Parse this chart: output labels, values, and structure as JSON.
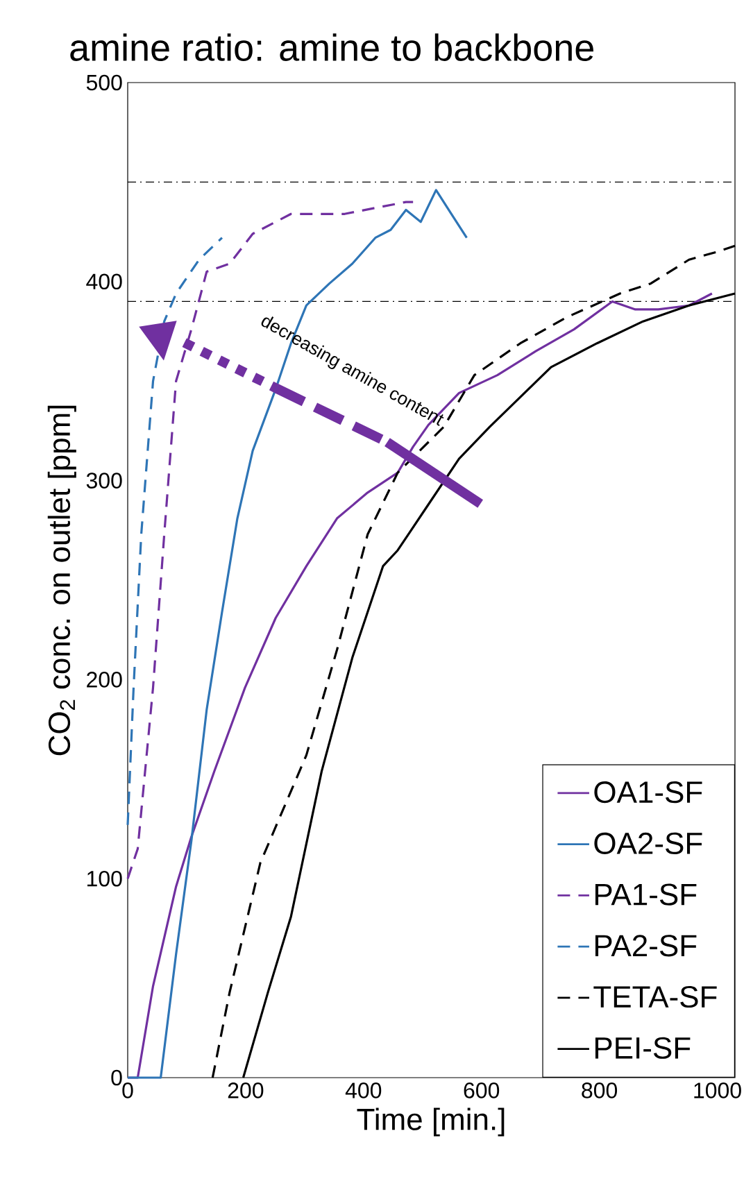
{
  "chart_data": {
    "type": "line",
    "title": "amine ratio: amine to backbone",
    "xlabel": "Time [min.]",
    "ylabel": "CO$_{2}$ conc. on outlet [ppm]",
    "xlim": [
      0,
      1030
    ],
    "ylim": [
      0,
      500
    ],
    "xticks": [
      0,
      200,
      400,
      600,
      800,
      1000
    ],
    "yticks": [
      0,
      100,
      200,
      300,
      400,
      500
    ],
    "grid": false,
    "legend": "bottom right",
    "annotations": [
      "decreasing amine content"
    ],
    "ref_lines": [
      {
        "axis": "y",
        "value": 450,
        "color": "#000000",
        "line_style": "dashdot"
      },
      {
        "axis": "y",
        "value": 390,
        "color": "#000000",
        "line_style": "dashdot"
      }
    ],
    "series": [
      {
        "name": "OA1-SF",
        "color": "#7030a0",
        "line_style": "solid",
        "x": [
          0,
          17,
          43,
          82,
          108,
          147,
          199,
          251,
          303,
          355,
          407,
          458,
          484,
          510,
          562,
          627,
          692,
          757,
          822,
          861,
          900,
          952,
          991
        ],
        "values": [
          0,
          0,
          46,
          96,
          121,
          154,
          196,
          231,
          257,
          281,
          294,
          304,
          317,
          328,
          344,
          353,
          365,
          376,
          390,
          386,
          386,
          388,
          394
        ]
      },
      {
        "name": "OA2-SF",
        "color": "#2e75b6",
        "line_style": "solid",
        "x": [
          0,
          56,
          82,
          108,
          134,
          160,
          186,
          212,
          251,
          277,
          303,
          342,
          381,
          420,
          446,
          472,
          497,
          523,
          549,
          575
        ],
        "values": [
          0,
          0,
          62,
          119,
          185,
          234,
          281,
          315,
          346,
          369,
          388,
          399,
          409,
          422,
          426,
          436,
          430,
          446,
          434,
          422
        ]
      },
      {
        "name": "PA1-SF",
        "color": "#7030a0",
        "line_style": "dashed",
        "x": [
          0,
          17,
          43,
          62,
          82,
          108,
          134,
          173,
          212,
          277,
          368,
          472,
          484
        ],
        "values": [
          100,
          115,
          196,
          273,
          350,
          376,
          405,
          409,
          424,
          434,
          434,
          440,
          440
        ]
      },
      {
        "name": "PA2-SF",
        "color": "#2e75b6",
        "line_style": "dashed",
        "x": [
          0,
          10,
          23,
          43,
          62,
          82,
          121,
          160
        ],
        "values": [
          127,
          196,
          273,
          350,
          380,
          394,
          411,
          422
        ]
      },
      {
        "name": "TETA-SF",
        "color": "#000000",
        "line_style": "dashed",
        "x": [
          144,
          173,
          225,
          303,
          355,
          407,
          458,
          536,
          588,
          666,
          744,
          835,
          887,
          952,
          1000,
          1030
        ],
        "values": [
          0,
          43,
          108,
          162,
          215,
          273,
          304,
          327,
          353,
          369,
          382,
          394,
          399,
          411,
          415,
          418
        ]
      },
      {
        "name": "PEI-SF",
        "color": "#000000",
        "line_style": "solid",
        "x": [
          196,
          238,
          277,
          329,
          381,
          433,
          458,
          510,
          562,
          614,
          666,
          718,
          796,
          874,
          952,
          1030
        ],
        "values": [
          0,
          43,
          81,
          154,
          211,
          257,
          265,
          288,
          311,
          327,
          342,
          357,
          369,
          380,
          388,
          394
        ]
      }
    ]
  }
}
